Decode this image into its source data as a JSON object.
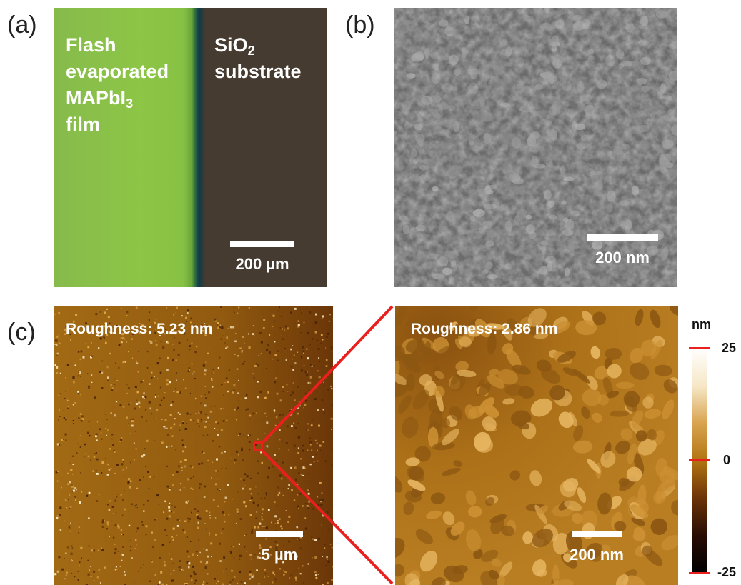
{
  "panels": {
    "a": {
      "label": "(a)",
      "film_text": {
        "line1": "Flash",
        "line2": "evaporated",
        "line3_main": "MAPbI",
        "line3_sub": "3",
        "line4": "film"
      },
      "substrate_text": {
        "line1_main": "SiO",
        "line1_sub": "2",
        "line2": "substrate"
      },
      "scale_label": "200 µm",
      "colors": {
        "film": "#8bc34a",
        "substrate": "#463b31"
      }
    },
    "b": {
      "label": "(b)",
      "scale_label": "200 nm",
      "colors": {
        "background": "#707070"
      }
    },
    "c": {
      "label": "(c)",
      "left": {
        "roughness": "Roughness: 5.23 nm",
        "scale_label": "5 µm"
      },
      "right": {
        "roughness": "Roughness: 2.86 nm",
        "scale_label": "200 nm"
      },
      "zoom_color": "#e8201e",
      "colorbar": {
        "unit": "nm",
        "ticks": [
          {
            "text": "25"
          },
          {
            "text": "0"
          },
          {
            "text": "-25"
          }
        ],
        "colors": [
          "#ffffff",
          "#f6e7c6",
          "#d9a552",
          "#b27411",
          "#6a3208",
          "#2a0d04",
          "#000000"
        ]
      }
    }
  }
}
